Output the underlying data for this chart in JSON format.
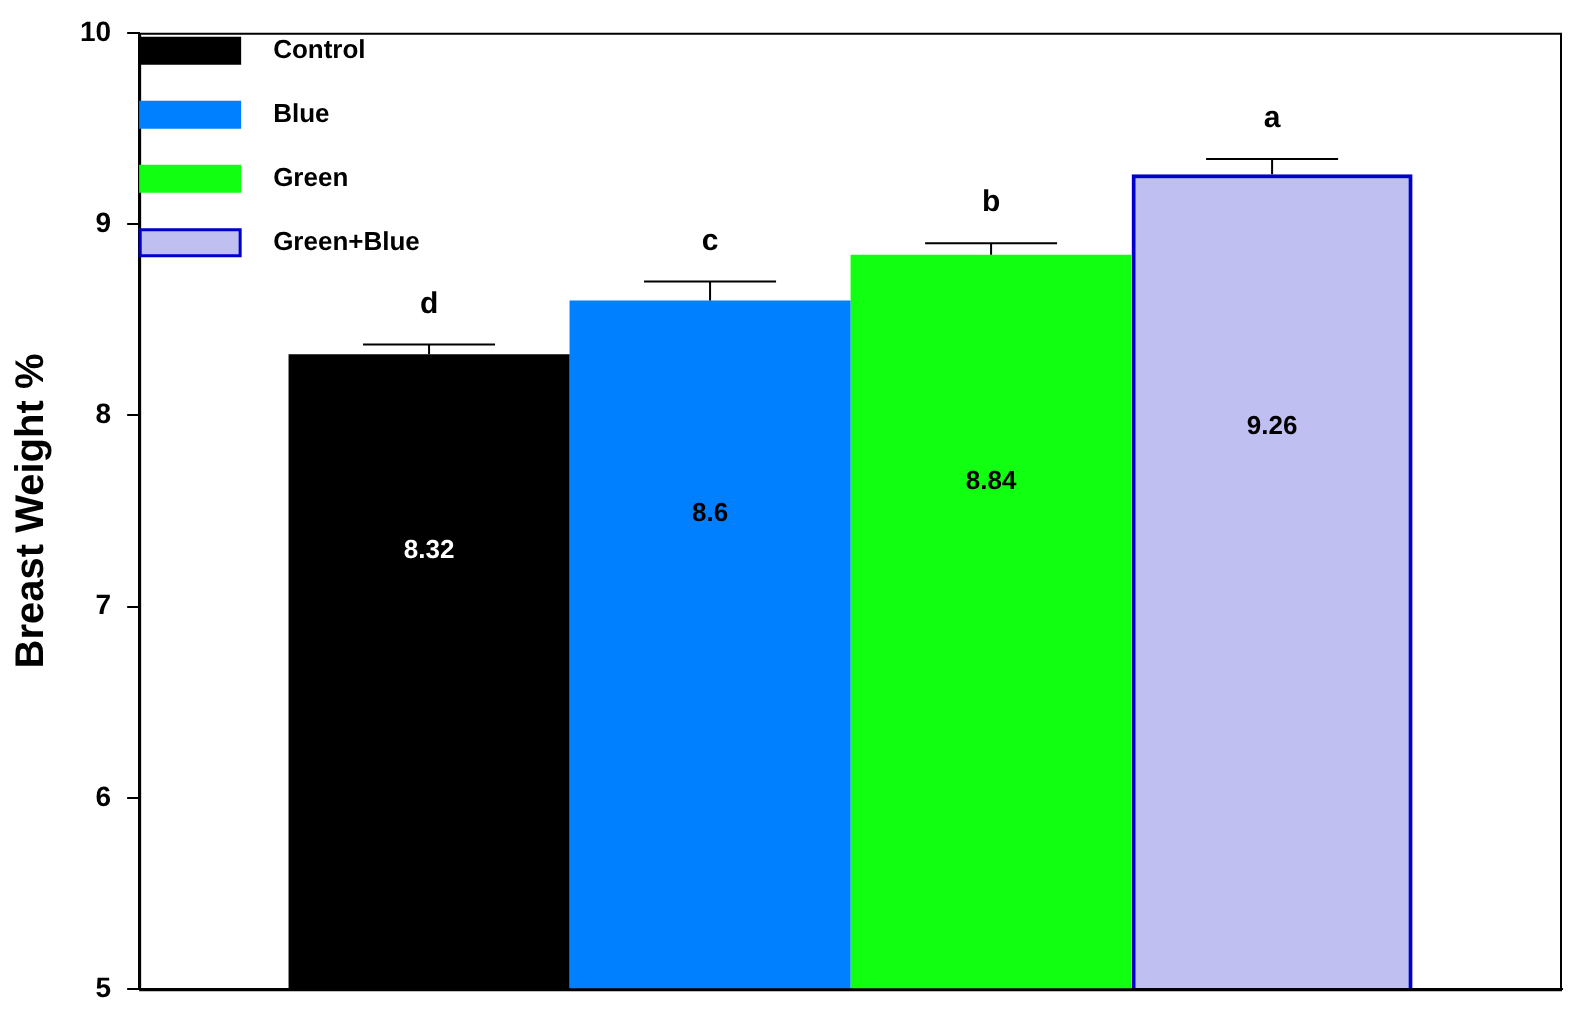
{
  "chart_data": {
    "type": "bar",
    "ylabel": "Breast Weight %",
    "categories": [
      null
    ],
    "series": [
      {
        "name": "Control",
        "color": "#000000",
        "values": [
          8.32
        ],
        "errors": [
          [
            8.32,
            8.37
          ]
        ]
      },
      {
        "name": "Blue",
        "color": "#0080ff",
        "values": [
          8.6
        ],
        "errors": [
          [
            8.6,
            8.7
          ]
        ]
      },
      {
        "name": "Green",
        "color": "#11ff11",
        "values": [
          8.84
        ],
        "errors": [
          [
            8.84,
            8.9
          ]
        ]
      },
      {
        "name": "Green+Blue",
        "color": "#0000cc",
        "values": [
          9.26
        ],
        "errors": [
          [
            9.26,
            9.34
          ]
        ]
      }
    ],
    "ylim": [
      5,
      10
    ],
    "yticks": [
      5,
      6,
      7,
      8,
      9,
      10
    ],
    "grid": false,
    "legend": "top left",
    "tick_labels": "y",
    "data_labels": true,
    "annotations": [
      "d",
      "c",
      "b",
      "a"
    ]
  }
}
